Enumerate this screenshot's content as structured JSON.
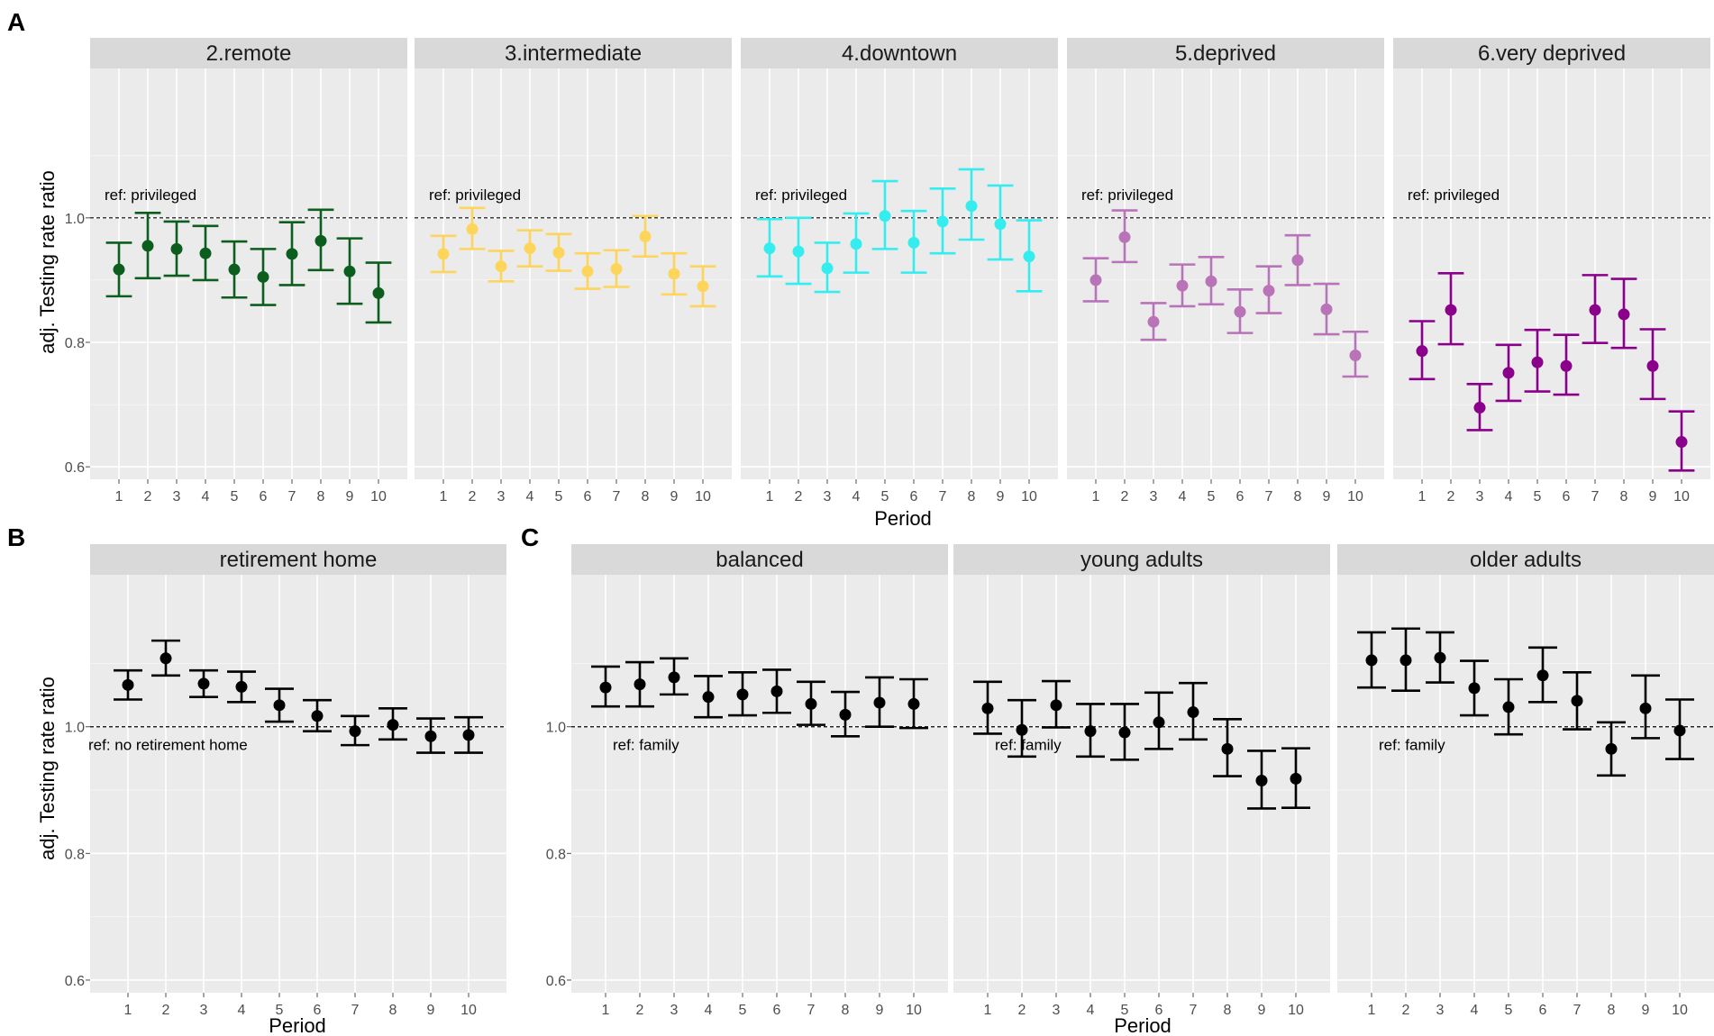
{
  "panel_letters": [
    "A",
    "B",
    "C"
  ],
  "y_axis_label": "adj. Testing rate ratio",
  "x_axis_label": "Period",
  "y_ticks": [
    "0.6",
    "0.8",
    "1.0"
  ],
  "chart_data": [
    {
      "id": "A",
      "type": "scatter",
      "subtype": "point-with-error-bars",
      "xlabel": "Period",
      "ylabel": "adj. Testing rate ratio",
      "ylim": [
        0.58,
        1.24
      ],
      "reference_line": 1.0,
      "categories": [
        1,
        2,
        3,
        4,
        5,
        6,
        7,
        8,
        9,
        10
      ],
      "series": [
        {
          "name": "2.remote",
          "color": "#0c5e1e",
          "ref_label": "ref: privileged",
          "values": [
            0.917,
            0.955,
            0.95,
            0.943,
            0.917,
            0.905,
            0.942,
            0.963,
            0.914,
            0.879
          ],
          "lower": [
            0.874,
            0.903,
            0.907,
            0.9,
            0.872,
            0.86,
            0.892,
            0.916,
            0.862,
            0.832
          ],
          "upper": [
            0.96,
            1.008,
            0.994,
            0.987,
            0.962,
            0.95,
            0.993,
            1.013,
            0.967,
            0.928
          ]
        },
        {
          "name": "3.intermediate",
          "color": "#fdd55c",
          "ref_label": "ref: privileged",
          "values": [
            0.942,
            0.982,
            0.922,
            0.951,
            0.944,
            0.914,
            0.918,
            0.97,
            0.91,
            0.89
          ],
          "lower": [
            0.913,
            0.95,
            0.898,
            0.922,
            0.915,
            0.886,
            0.889,
            0.938,
            0.877,
            0.858
          ],
          "upper": [
            0.971,
            1.016,
            0.947,
            0.98,
            0.974,
            0.943,
            0.948,
            1.003,
            0.943,
            0.922
          ]
        },
        {
          "name": "4.downtown",
          "color": "#35ecee",
          "ref_label": "ref: privileged",
          "values": [
            0.951,
            0.946,
            0.919,
            0.958,
            1.003,
            0.96,
            0.994,
            1.019,
            0.99,
            0.938
          ],
          "lower": [
            0.906,
            0.894,
            0.881,
            0.912,
            0.95,
            0.912,
            0.943,
            0.965,
            0.933,
            0.882
          ],
          "upper": [
            0.998,
            1.0,
            0.96,
            1.007,
            1.059,
            1.011,
            1.047,
            1.078,
            1.052,
            0.996
          ]
        },
        {
          "name": "5.deprived",
          "color": "#b973b9",
          "ref_label": "ref: privileged",
          "values": [
            0.9,
            0.969,
            0.833,
            0.891,
            0.898,
            0.849,
            0.883,
            0.932,
            0.853,
            0.779
          ],
          "lower": [
            0.866,
            0.929,
            0.804,
            0.858,
            0.861,
            0.815,
            0.847,
            0.892,
            0.813,
            0.745
          ],
          "upper": [
            0.935,
            1.012,
            0.863,
            0.925,
            0.937,
            0.885,
            0.922,
            0.972,
            0.894,
            0.817
          ]
        },
        {
          "name": "6.very deprived",
          "color": "#8b008b",
          "ref_label": "ref: privileged",
          "values": [
            0.786,
            0.852,
            0.695,
            0.751,
            0.768,
            0.762,
            0.852,
            0.845,
            0.762,
            0.64
          ],
          "lower": [
            0.741,
            0.797,
            0.659,
            0.706,
            0.721,
            0.716,
            0.799,
            0.791,
            0.709,
            0.594
          ],
          "upper": [
            0.834,
            0.911,
            0.733,
            0.796,
            0.82,
            0.812,
            0.908,
            0.902,
            0.821,
            0.689
          ]
        }
      ]
    },
    {
      "id": "B",
      "type": "scatter",
      "subtype": "point-with-error-bars",
      "xlabel": "Period",
      "ylabel": "adj. Testing rate ratio",
      "ylim": [
        0.58,
        1.24
      ],
      "reference_line": 1.0,
      "categories": [
        1,
        2,
        3,
        4,
        5,
        6,
        7,
        8,
        9,
        10
      ],
      "series": [
        {
          "name": "retirement home",
          "color": "#000000",
          "ref_label": "ref: no retirement home",
          "values": [
            1.066,
            1.108,
            1.068,
            1.063,
            1.034,
            1.017,
            0.993,
            1.003,
            0.985,
            0.987
          ],
          "lower": [
            1.043,
            1.081,
            1.047,
            1.039,
            1.008,
            0.993,
            0.971,
            0.98,
            0.959,
            0.959
          ],
          "upper": [
            1.089,
            1.136,
            1.089,
            1.087,
            1.06,
            1.042,
            1.017,
            1.029,
            1.013,
            1.015
          ]
        }
      ]
    },
    {
      "id": "C",
      "type": "scatter",
      "subtype": "point-with-error-bars",
      "xlabel": "Period",
      "ylabel": "",
      "ylim": [
        0.58,
        1.24
      ],
      "reference_line": 1.0,
      "categories": [
        1,
        2,
        3,
        4,
        5,
        6,
        7,
        8,
        9,
        10
      ],
      "series": [
        {
          "name": "balanced",
          "color": "#000000",
          "ref_label": "ref: family",
          "values": [
            1.062,
            1.067,
            1.078,
            1.047,
            1.051,
            1.056,
            1.036,
            1.019,
            1.038,
            1.036
          ],
          "lower": [
            1.032,
            1.032,
            1.051,
            1.015,
            1.018,
            1.022,
            1.003,
            0.985,
            1.0,
            0.998
          ],
          "upper": [
            1.095,
            1.102,
            1.108,
            1.08,
            1.086,
            1.09,
            1.071,
            1.055,
            1.078,
            1.075
          ]
        },
        {
          "name": "young adults",
          "color": "#000000",
          "ref_label": "ref: family",
          "values": [
            1.029,
            0.995,
            1.034,
            0.993,
            0.991,
            1.007,
            1.023,
            0.965,
            0.915,
            0.918
          ],
          "lower": [
            0.989,
            0.953,
            0.999,
            0.953,
            0.948,
            0.965,
            0.98,
            0.922,
            0.871,
            0.872
          ],
          "upper": [
            1.071,
            1.042,
            1.072,
            1.036,
            1.036,
            1.054,
            1.069,
            1.012,
            0.962,
            0.966
          ]
        },
        {
          "name": "older adults",
          "color": "#000000",
          "ref_label": "ref: family",
          "values": [
            1.105,
            1.105,
            1.109,
            1.061,
            1.031,
            1.081,
            1.041,
            0.965,
            1.029,
            0.994
          ],
          "lower": [
            1.062,
            1.057,
            1.07,
            1.018,
            0.988,
            1.039,
            0.996,
            0.923,
            0.982,
            0.949
          ],
          "upper": [
            1.149,
            1.155,
            1.149,
            1.104,
            1.075,
            1.125,
            1.086,
            1.007,
            1.081,
            1.043
          ]
        }
      ]
    }
  ]
}
